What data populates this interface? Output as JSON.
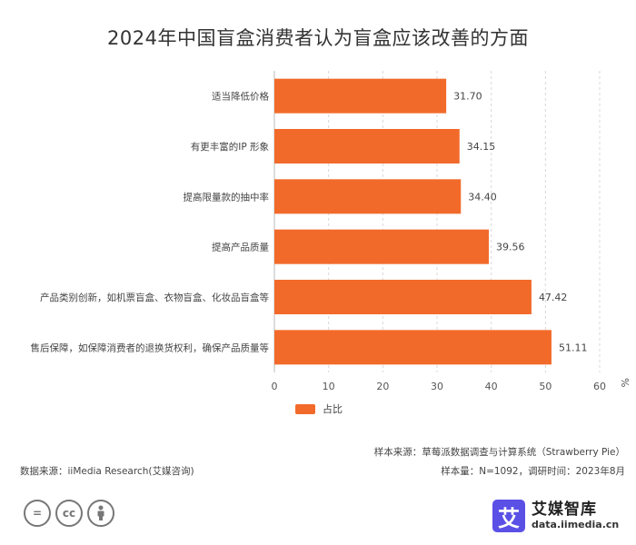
{
  "chart_data": {
    "type": "bar",
    "orientation": "horizontal",
    "title": "2024年中国盲盒消费者认为盲盒应该改善的方面",
    "categories": [
      "适当降低价格",
      "有更丰富的IP 形象",
      "提高限量款的抽中率",
      "提高产品质量",
      "产品类别创新，如机票盲盒、衣物盲盒、化妆品盲盒等",
      "售后保障，如保障消费者的退换货权利，确保产品质量等"
    ],
    "series": [
      {
        "name": "占比",
        "values": [
          31.7,
          34.15,
          34.4,
          39.56,
          47.42,
          51.11
        ],
        "color": "#f26a2a"
      }
    ],
    "value_labels": [
      "31.70",
      "34.15",
      "34.40",
      "39.56",
      "47.42",
      "51.11"
    ],
    "xlim": [
      0,
      60
    ],
    "x_ticks": [
      0,
      10,
      20,
      30,
      40,
      50,
      60
    ],
    "x_unit": "%",
    "grid": "vertical-dashed",
    "legend_position": "bottom"
  },
  "source": {
    "sample_source": "样本来源：草莓派数据调查与计算系统（Strawberry Pie）",
    "sample_size": "样本量：N=1092，调研时间：2023年8月",
    "data_source": "数据来源：iiMedia Research(艾媒咨询)"
  },
  "license_icons": [
    "equals-icon",
    "cc-icon",
    "person-icon"
  ],
  "license_icon_text": {
    "equals": "=",
    "cc": "cc"
  },
  "brand": {
    "mark": "艾",
    "name": "艾媒智库",
    "url": "data.iimedia.cn",
    "color": "#5b50e6"
  }
}
